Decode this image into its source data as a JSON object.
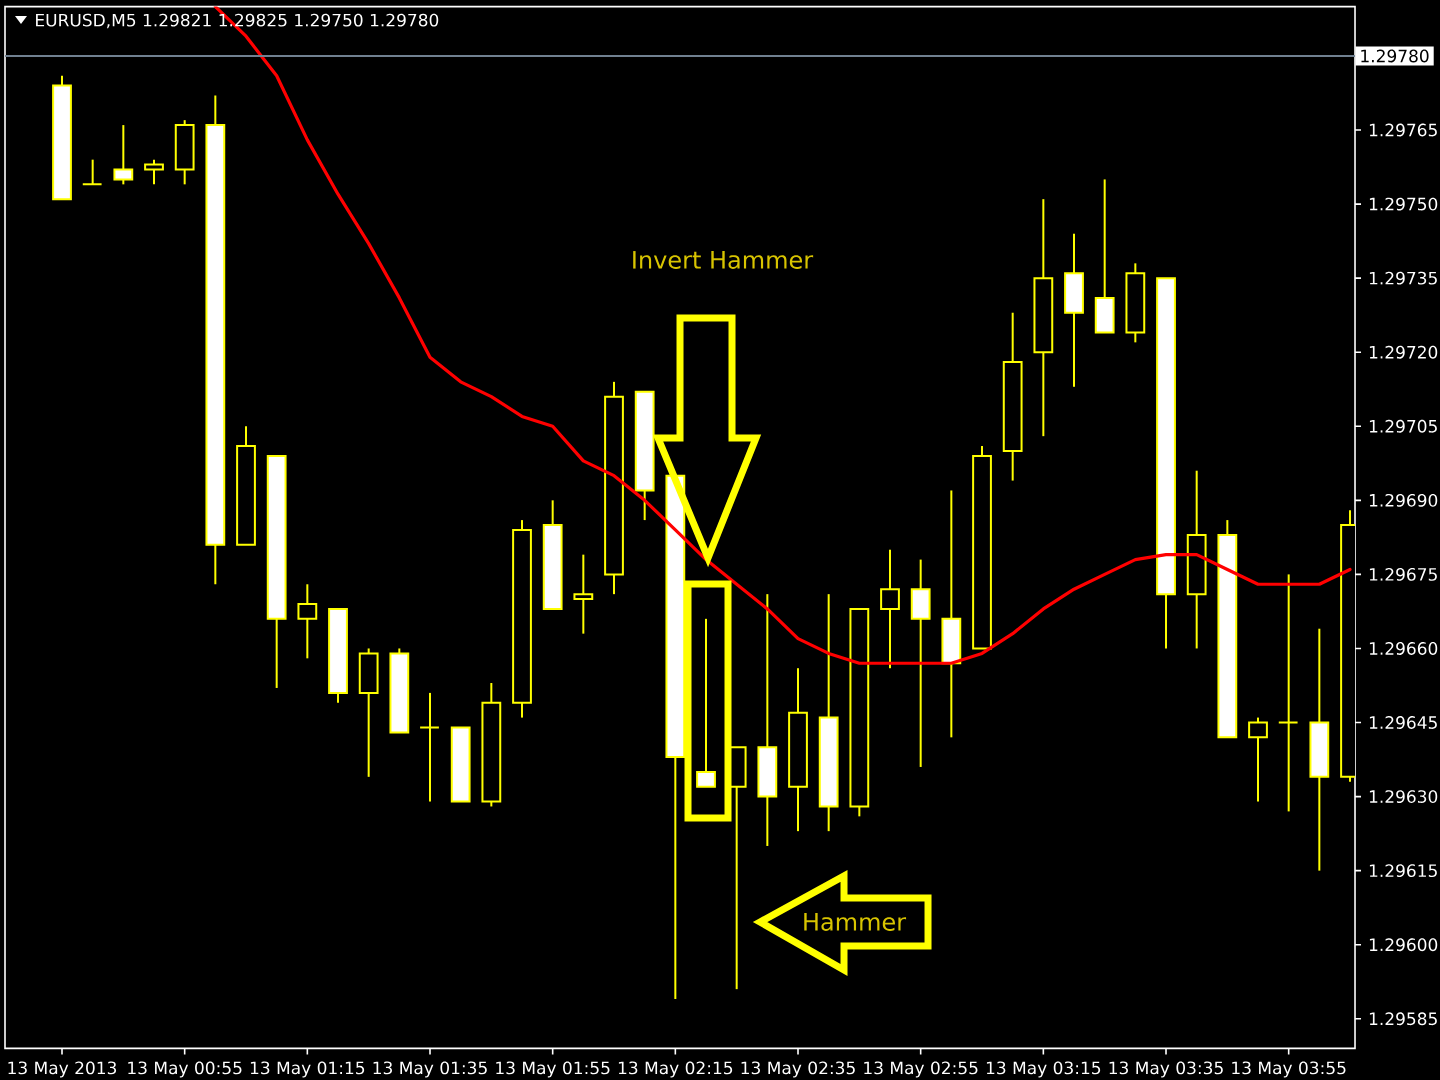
{
  "chart_data": {
    "type": "candlestick",
    "title": "EURUSD,M5 1.29821 1.29825 1.29750 1.29780",
    "categories": [
      "13 May 2013",
      null,
      null,
      null,
      "13 May 00:55",
      null,
      null,
      null,
      "13 May 01:15",
      null,
      null,
      null,
      "13 May 01:35",
      null,
      null,
      null,
      "13 May 01:55",
      null,
      null,
      null,
      "13 May 02:15",
      null,
      null,
      null,
      "13 May 02:35",
      null,
      null,
      null,
      "13 May 02:55",
      null,
      null,
      null,
      "13 May 03:15",
      null,
      null,
      null,
      "13 May 03:35",
      null,
      null,
      null,
      "13 May 03:55",
      null,
      null
    ],
    "ylim": [
      1.29579,
      1.2979
    ],
    "yticks": [
      {
        "value": 1.29585,
        "label": "1.29585"
      },
      {
        "value": 1.296,
        "label": "1.29600"
      },
      {
        "value": 1.29615,
        "label": "1.29615"
      },
      {
        "value": 1.2963,
        "label": "1.29630"
      },
      {
        "value": 1.29645,
        "label": "1.29645"
      },
      {
        "value": 1.2966,
        "label": "1.29660"
      },
      {
        "value": 1.29675,
        "label": "1.29675"
      },
      {
        "value": 1.2969,
        "label": "1.29690"
      },
      {
        "value": 1.29705,
        "label": "1.29705"
      },
      {
        "value": 1.2972,
        "label": "1.29720"
      },
      {
        "value": 1.29735,
        "label": "1.29735"
      },
      {
        "value": 1.2975,
        "label": "1.29750"
      },
      {
        "value": 1.29765,
        "label": "1.29765"
      }
    ],
    "series": [
      {
        "color": "#ffff00",
        "colors": [
          "#ffffff",
          "#ffff00",
          "#ffffff",
          "#000000",
          "#000000",
          "#ffffff",
          "#000000",
          "#ffffff",
          "#000000",
          "#ffffff",
          "#000000",
          "#ffffff",
          "#ffff00",
          "#ffffff",
          "#000000",
          "#000000",
          "#ffffff",
          "#000000",
          "#000000",
          "#ffffff",
          "#ffffff",
          "#ffffff",
          "#000000",
          "#ffffff",
          "#000000",
          "#ffffff",
          "#000000",
          "#000000",
          "#ffffff",
          "#ffffff",
          "#000000",
          "#000000",
          "#000000",
          "#ffffff",
          "#ffffff",
          "#000000",
          "#ffffff",
          "#000000",
          "#ffffff",
          "#000000",
          "#ffff00",
          "#ffffff",
          "#000000"
        ],
        "ohlc": [
          [
            1.29774,
            1.29776,
            1.29751,
            1.29751
          ],
          [
            1.29754,
            1.29759,
            1.29754,
            1.29754
          ],
          [
            1.29757,
            1.29766,
            1.29754,
            1.29755
          ],
          [
            1.29757,
            1.29759,
            1.29754,
            1.29758
          ],
          [
            1.29757,
            1.29767,
            1.29754,
            1.29766
          ],
          [
            1.29766,
            1.29772,
            1.29673,
            1.29681
          ],
          [
            1.29681,
            1.29705,
            1.29681,
            1.29701
          ],
          [
            1.29699,
            1.29699,
            1.29652,
            1.29666
          ],
          [
            1.29666,
            1.29673,
            1.29658,
            1.29669
          ],
          [
            1.29668,
            1.29668,
            1.29649,
            1.29651
          ],
          [
            1.29651,
            1.2966,
            1.29634,
            1.29659
          ],
          [
            1.29659,
            1.2966,
            1.29643,
            1.29643
          ],
          [
            1.29644,
            1.29651,
            1.29629,
            1.29644
          ],
          [
            1.29644,
            1.29644,
            1.29629,
            1.29629
          ],
          [
            1.29629,
            1.29653,
            1.29628,
            1.29649
          ],
          [
            1.29649,
            1.29686,
            1.29646,
            1.29684
          ],
          [
            1.29685,
            1.2969,
            1.29668,
            1.29668
          ],
          [
            1.2967,
            1.29679,
            1.29663,
            1.29671
          ],
          [
            1.29675,
            1.29714,
            1.29671,
            1.29711
          ],
          [
            1.29712,
            1.29712,
            1.29686,
            1.29692
          ],
          [
            1.29695,
            1.29695,
            1.29589,
            1.29638
          ],
          [
            1.29635,
            1.29666,
            1.29632,
            1.29632
          ],
          [
            1.29632,
            1.2964,
            1.29591,
            1.2964
          ],
          [
            1.2964,
            1.29671,
            1.2962,
            1.2963
          ],
          [
            1.29632,
            1.29656,
            1.29623,
            1.29647
          ],
          [
            1.29646,
            1.29671,
            1.29623,
            1.29628
          ],
          [
            1.29628,
            1.29668,
            1.29626,
            1.29668
          ],
          [
            1.29668,
            1.2968,
            1.29656,
            1.29672
          ],
          [
            1.29672,
            1.29678,
            1.29636,
            1.29666
          ],
          [
            1.29666,
            1.29692,
            1.29642,
            1.29657
          ],
          [
            1.2966,
            1.29701,
            1.2966,
            1.29699
          ],
          [
            1.297,
            1.29728,
            1.29694,
            1.29718
          ],
          [
            1.2972,
            1.29751,
            1.29703,
            1.29735
          ],
          [
            1.29736,
            1.29744,
            1.29713,
            1.29728
          ],
          [
            1.29731,
            1.29755,
            1.29724,
            1.29724
          ],
          [
            1.29724,
            1.29738,
            1.29722,
            1.29736
          ],
          [
            1.29735,
            1.29735,
            1.2966,
            1.29671
          ],
          [
            1.29671,
            1.29696,
            1.2966,
            1.29683
          ],
          [
            1.29683,
            1.29686,
            1.29642,
            1.29642
          ],
          [
            1.29642,
            1.29646,
            1.29629,
            1.29645
          ],
          [
            1.29645,
            1.29675,
            1.29627,
            1.29645
          ],
          [
            1.29645,
            1.29664,
            1.29615,
            1.29634
          ],
          [
            1.29634,
            1.29688,
            1.29633,
            1.29685
          ]
        ]
      },
      {
        "type": "line",
        "color": "#ff0000",
        "values": [
          null,
          null,
          null,
          null,
          null,
          1.2979,
          1.29784,
          1.29776,
          1.29763,
          1.29752,
          1.29742,
          1.29731,
          1.29719,
          1.29714,
          1.29711,
          1.29707,
          1.29705,
          1.29698,
          1.29695,
          1.2969,
          1.29684,
          1.29678,
          1.29673,
          1.29668,
          1.29662,
          1.29659,
          1.29657,
          1.29657,
          1.29657,
          1.29657,
          1.29659,
          1.29663,
          1.29668,
          1.29672,
          1.29675,
          1.29678,
          1.29679,
          1.29679,
          1.29676,
          1.29673,
          1.29673,
          1.29673,
          1.29676
        ]
      }
    ],
    "ref_lines": [
      {
        "axis": "y",
        "value": 1.2978,
        "label": "1.29780",
        "color": "#708090"
      }
    ],
    "annotations": [
      "Invert Hammer",
      "Hammer"
    ]
  }
}
